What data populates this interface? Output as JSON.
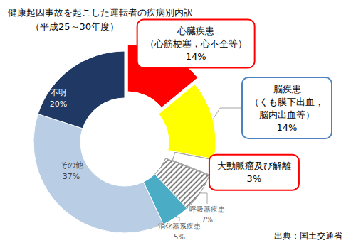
{
  "chart_data": {
    "type": "pie",
    "title": "健康起因事故を起こした運転者の疾病別内訳",
    "subtitle": "（平成25～30年度）",
    "categories": [
      "心臓疾患\n（心筋梗塞，心不全等）",
      "脳疾患\n（くも膜下出血，\n脳内出血等）",
      "大動脈瘤及び解離",
      "呼吸器疾患",
      "消化器系疾患",
      "その他",
      "不明"
    ],
    "values": [
      14,
      14,
      3,
      7,
      5,
      37,
      20
    ],
    "value_labels": [
      "14%",
      "14%",
      "3%",
      "7%",
      "5%",
      "37%",
      "20%"
    ],
    "colors": [
      "#ff0000",
      "#ffff00",
      "#ffffff",
      "#ffffff",
      "#4bacc6",
      "#b9cde5",
      "#1f3864"
    ],
    "data_labels": true,
    "annotations": [
      "出典：国土交通省"
    ]
  }
}
